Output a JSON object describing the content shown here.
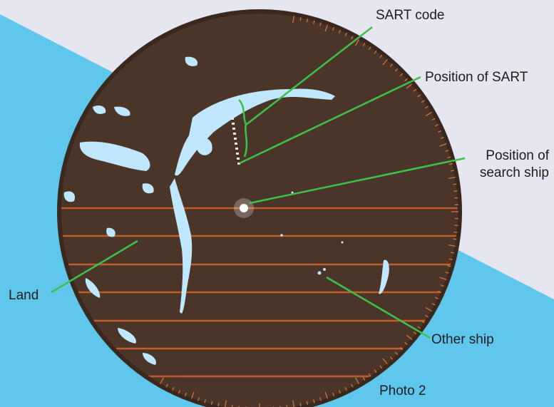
{
  "labels": {
    "sart_code": "SART code",
    "sart_position": "Position of SART",
    "search_ship_line1": "Position of",
    "search_ship_line2": "search ship",
    "land": "Land",
    "other_ship": "Other ship",
    "photo": "Photo 2"
  },
  "colors": {
    "page_background": "#e6e6f0",
    "water_band": "#5fc6ec",
    "radar_screen": "#4a3528",
    "sweep_lines": "#d5642e",
    "echoes": "#bfe8ff",
    "bearing_scale": "#e07a3a",
    "pointer_lines": "#3cc14a"
  }
}
